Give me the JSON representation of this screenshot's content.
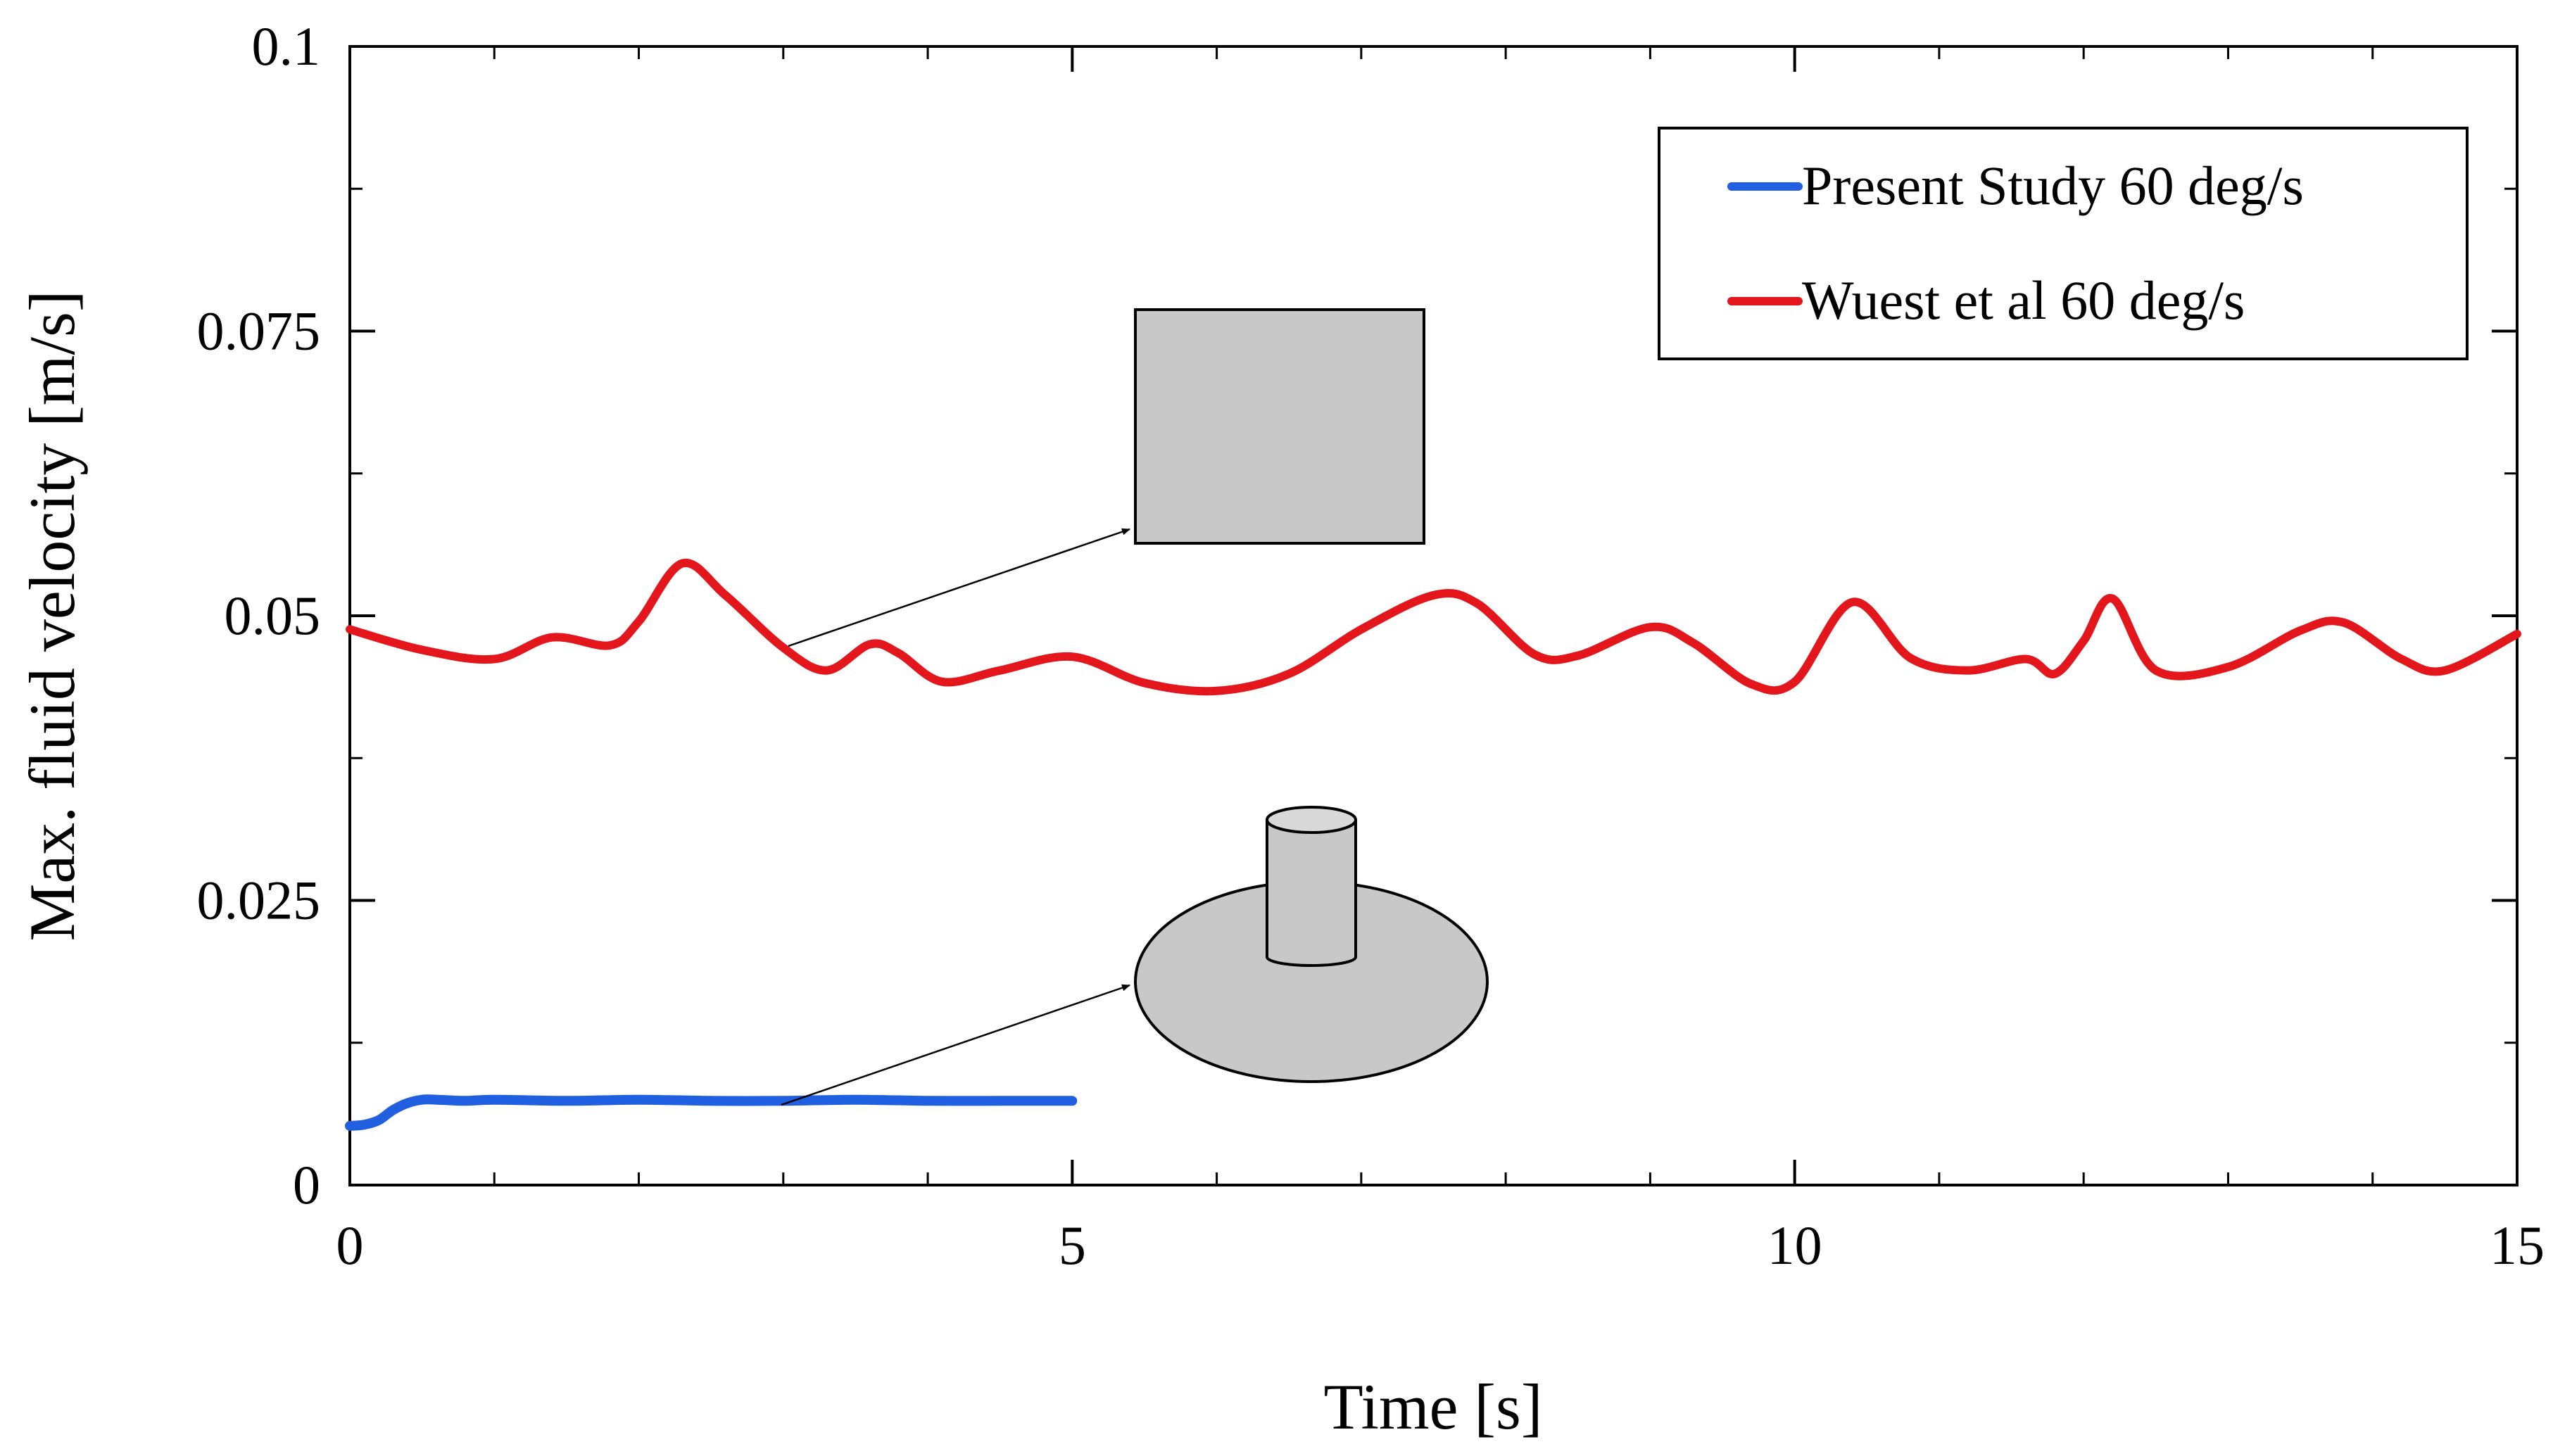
{
  "chart_data": {
    "type": "line",
    "title": "",
    "xlabel": "Time [s]",
    "ylabel": "Max. fluid velocity [m/s]",
    "xlim": [
      0,
      15
    ],
    "ylim": [
      0,
      0.1
    ],
    "xticks": [
      0,
      5,
      10,
      15
    ],
    "xtick_labels": [
      "0",
      "5",
      "10",
      "15"
    ],
    "yticks": [
      0,
      0.025,
      0.05,
      0.075,
      0.1
    ],
    "ytick_labels": [
      "0",
      "0.025",
      "0.05",
      "0.075",
      "0.1"
    ],
    "x_minor_step": 1,
    "y_minor_step": 0.0125,
    "grid": false,
    "legend_position": "top-right",
    "series": [
      {
        "name": "Present Study 60 deg/s",
        "color": "#1f5fe0",
        "x": [
          0,
          0.1,
          0.2,
          0.3,
          0.4,
          0.5,
          0.6,
          0.8,
          1.0,
          1.5,
          2.0,
          2.5,
          3.0,
          3.5,
          4.0,
          4.5,
          5.0
        ],
        "y": [
          0.0052,
          0.0053,
          0.0057,
          0.0066,
          0.0072,
          0.0075,
          0.0075,
          0.0074,
          0.0075,
          0.0074,
          0.0075,
          0.0074,
          0.0074,
          0.0075,
          0.0074,
          0.0074,
          0.0074
        ]
      },
      {
        "name": "Wuest et al 60 deg/s",
        "color": "#e3161b",
        "x": [
          0,
          0.5,
          1.0,
          1.4,
          1.8,
          2.0,
          2.3,
          2.6,
          3.0,
          3.3,
          3.6,
          3.8,
          4.1,
          4.5,
          5.0,
          5.5,
          6.0,
          6.5,
          7.0,
          7.5,
          7.8,
          8.2,
          8.5,
          9.0,
          9.3,
          9.7,
          10.0,
          10.4,
          10.8,
          11.2,
          11.6,
          11.8,
          12.0,
          12.2,
          12.5,
          13.0,
          13.5,
          13.8,
          14.2,
          14.5,
          15.0
        ],
        "y": [
          0.0488,
          0.047,
          0.0462,
          0.0481,
          0.0474,
          0.0495,
          0.0546,
          0.0518,
          0.0472,
          0.0452,
          0.0475,
          0.0467,
          0.0442,
          0.0452,
          0.0464,
          0.0441,
          0.0434,
          0.0449,
          0.0488,
          0.0518,
          0.0511,
          0.0466,
          0.0465,
          0.049,
          0.0476,
          0.044,
          0.0442,
          0.0512,
          0.0463,
          0.0452,
          0.0462,
          0.0449,
          0.0478,
          0.0515,
          0.0452,
          0.0455,
          0.0487,
          0.0494,
          0.0462,
          0.0452,
          0.0484
        ]
      }
    ]
  },
  "annotations": {
    "square_icon": "square-prism-icon",
    "cylinder_icon": "cylinder-on-disk-icon",
    "arrow_icon": "arrow-icon"
  }
}
